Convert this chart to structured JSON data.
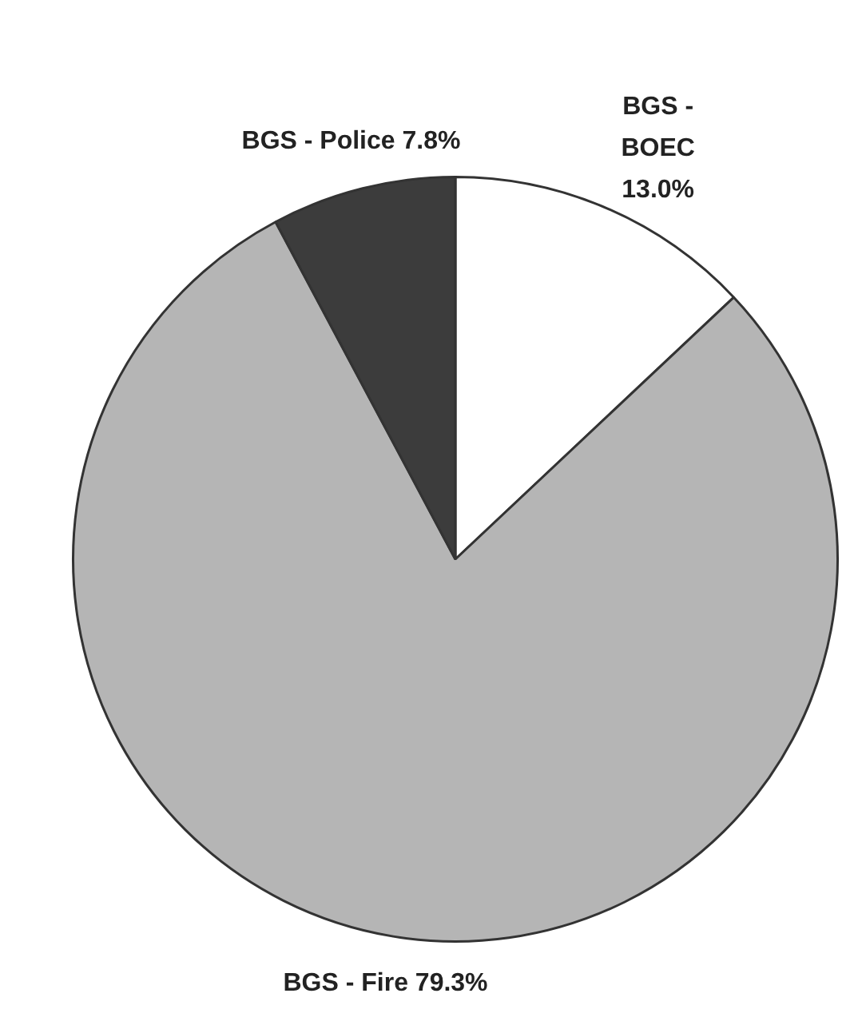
{
  "chart_data": {
    "type": "pie",
    "categories": [
      "BGS - BOEC",
      "BGS - Fire",
      "BGS - Police"
    ],
    "values": [
      13.0,
      79.3,
      7.8
    ],
    "value_labels": [
      "13.0%",
      "79.3%",
      "7.8%"
    ],
    "colors": [
      "#ffffff",
      "#b5b5b5",
      "#3c3c3c"
    ],
    "legend": false
  }
}
